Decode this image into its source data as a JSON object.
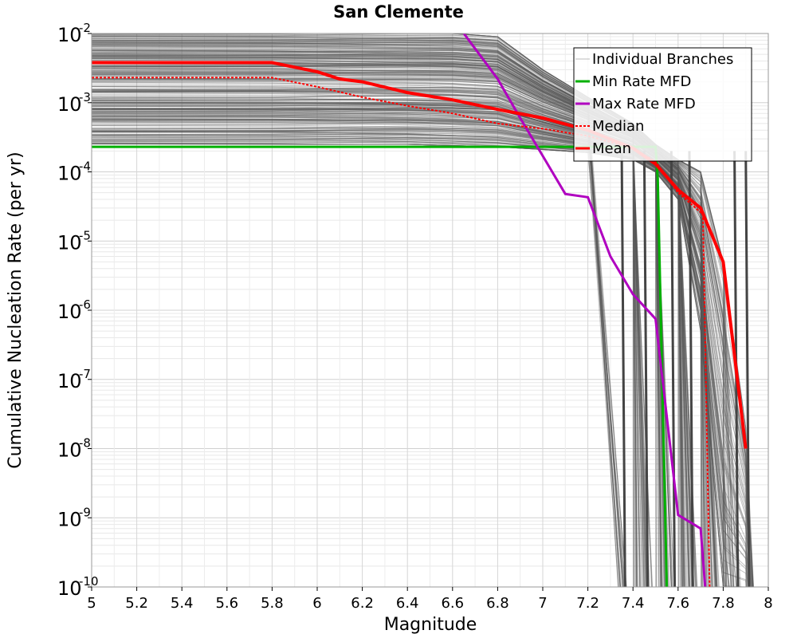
{
  "chart_data": {
    "type": "line",
    "title": "San Clemente",
    "xlabel": "Magnitude",
    "ylabel": "Cumulative Nucleation Rate (per yr)",
    "xlim": [
      5,
      8
    ],
    "ylim": [
      1e-10,
      0.01
    ],
    "yscale": "log",
    "grid": true,
    "legend_position": "top-right",
    "x_ticks": [
      "5",
      "5.2",
      "5.4",
      "5.6",
      "5.8",
      "6",
      "6.2",
      "6.4",
      "6.6",
      "6.8",
      "7",
      "7.2",
      "7.4",
      "7.6",
      "7.8",
      "8"
    ],
    "y_ticks": [
      {
        "base": "10",
        "exp": "-10",
        "value": 1e-10
      },
      {
        "base": "10",
        "exp": "-9",
        "value": 1e-09
      },
      {
        "base": "10",
        "exp": "-8",
        "value": 1e-08
      },
      {
        "base": "10",
        "exp": "-7",
        "value": 1e-07
      },
      {
        "base": "10",
        "exp": "-6",
        "value": 1e-06
      },
      {
        "base": "10",
        "exp": "-5",
        "value": 1e-05
      },
      {
        "base": "10",
        "exp": "-4",
        "value": 0.0001
      },
      {
        "base": "10",
        "exp": "-3",
        "value": 0.001
      },
      {
        "base": "10",
        "exp": "-2",
        "value": 0.01
      }
    ],
    "series": [
      {
        "name": "Individual Branches",
        "color": "#555555",
        "style": "thin-band",
        "x": [
          5.0,
          5.8,
          6.0,
          6.2,
          6.4,
          6.6,
          6.8,
          7.0,
          7.2,
          7.4,
          7.5,
          7.6,
          7.7,
          7.8,
          7.9
        ],
        "y_low": [
          0.00025,
          0.00025,
          0.00025,
          0.00025,
          0.00025,
          0.00024,
          0.00023,
          0.00021,
          0.00019,
          0.00015,
          0.0001,
          4e-05,
          5e-07,
          1e-10,
          1e-10
        ],
        "y_high": [
          0.01,
          0.01,
          0.01,
          0.01,
          0.01,
          0.01,
          0.009,
          0.003,
          0.0012,
          0.0005,
          0.00025,
          0.00015,
          0.0001,
          5e-06,
          2e-08
        ]
      },
      {
        "name": "Min Rate MFD",
        "color": "#00b000",
        "x": [
          5.0,
          7.5,
          7.51,
          7.55
        ],
        "y": [
          0.00023,
          0.00023,
          8e-05,
          1e-10
        ]
      },
      {
        "name": "Max Rate MFD",
        "color": "#b000c0",
        "x": [
          6.65,
          6.8,
          6.9,
          7.0,
          7.1,
          7.2,
          7.3,
          7.4,
          7.5,
          7.6,
          7.7,
          7.72
        ],
        "y": [
          0.01,
          0.0022,
          0.0006,
          0.00017,
          4.8e-05,
          4.3e-05,
          6e-06,
          1.7e-06,
          7.5e-07,
          1.1e-09,
          7e-10,
          1e-10
        ]
      },
      {
        "name": "Median",
        "color": "#ff0000",
        "dashed": true,
        "x": [
          5.0,
          5.8,
          6.0,
          6.2,
          6.4,
          6.6,
          6.8,
          7.0,
          7.2,
          7.4,
          7.5,
          7.6,
          7.7,
          7.71,
          7.74
        ],
        "y": [
          0.0023,
          0.0023,
          0.0017,
          0.0012,
          0.0009,
          0.0007,
          0.0005,
          0.00042,
          0.00033,
          0.00022,
          0.00014,
          5e-05,
          2.6e-05,
          2.5e-05,
          1e-10
        ]
      },
      {
        "name": "Mean",
        "color": "#ff0000",
        "x": [
          5.0,
          5.8,
          6.0,
          6.1,
          6.2,
          6.4,
          6.6,
          6.8,
          7.0,
          7.2,
          7.4,
          7.5,
          7.6,
          7.7,
          7.8,
          7.9
        ],
        "y": [
          0.0038,
          0.0038,
          0.0028,
          0.0022,
          0.002,
          0.0014,
          0.0011,
          0.0008,
          0.0006,
          0.0004,
          0.00022,
          0.00013,
          5.5e-05,
          3e-05,
          5e-06,
          1e-08
        ]
      }
    ]
  }
}
